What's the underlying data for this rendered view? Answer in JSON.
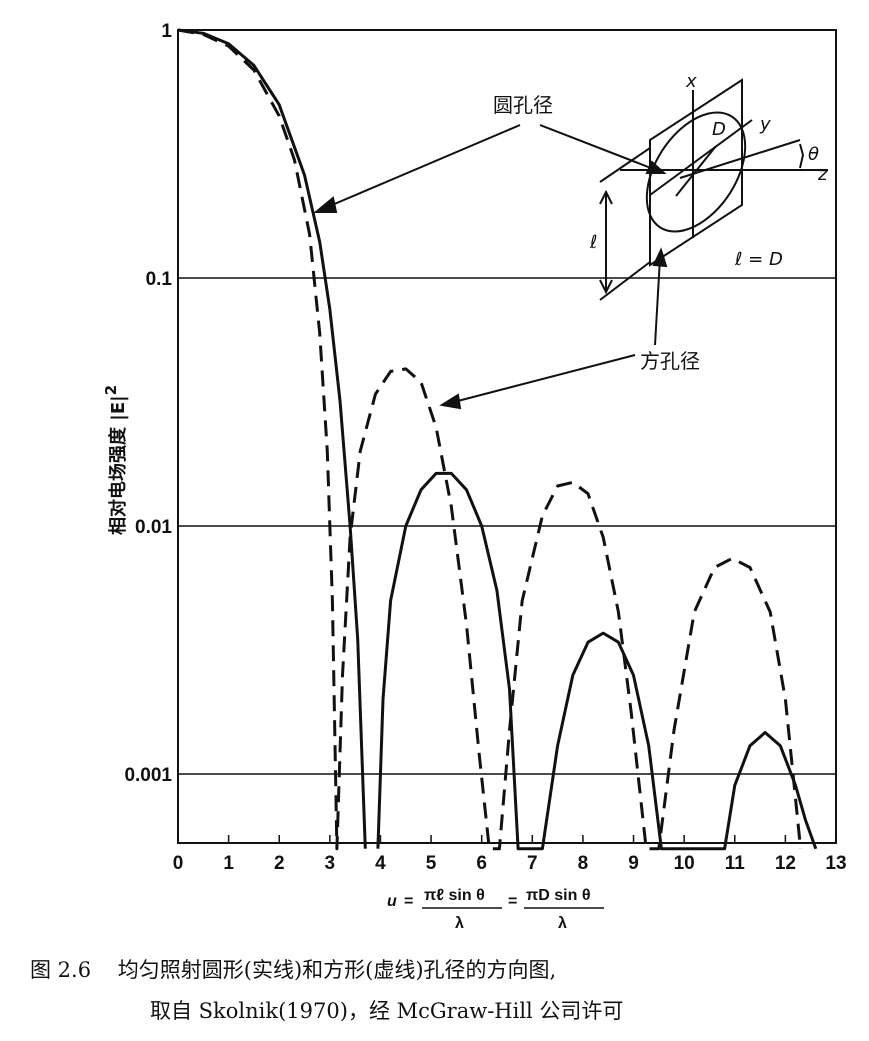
{
  "chart_data": {
    "type": "line",
    "y_scale": "log",
    "xlim": [
      0,
      13
    ],
    "ylim": [
      0.0005,
      1
    ],
    "x_ticks": [
      "0",
      "1",
      "2",
      "3",
      "4",
      "5",
      "6",
      "7",
      "8",
      "9",
      "10",
      "11",
      "12",
      "13"
    ],
    "y_ticks": [
      {
        "value": 1,
        "label": "1"
      },
      {
        "value": 0.1,
        "label": "0.1"
      },
      {
        "value": 0.01,
        "label": "0.01"
      },
      {
        "value": 0.001,
        "label": "0.001"
      }
    ],
    "ylabel": "相对电场强度 |E|",
    "ylabel_exp": "2",
    "xlabel": {
      "u": "u",
      "eq": "=",
      "num1": "πℓ sin θ",
      "num2": "πD sin θ",
      "den": "λ"
    },
    "series": [
      {
        "name": "圆孔径",
        "style": "solid",
        "x": [
          0,
          0.5,
          1.0,
          1.5,
          2.0,
          2.5,
          2.8,
          3.0,
          3.2,
          3.4,
          3.55,
          3.7,
          3.85,
          3.95,
          4.05,
          4.2,
          4.5,
          4.8,
          5.1,
          5.4,
          5.7,
          6.0,
          6.3,
          6.55,
          6.72,
          7.2,
          7.5,
          7.8,
          8.1,
          8.4,
          8.7,
          9.0,
          9.3,
          9.55,
          10.8,
          11.0,
          11.3,
          11.6,
          11.9,
          12.2,
          12.4,
          12.6
        ],
        "y": [
          1,
          0.97,
          0.88,
          0.72,
          0.5,
          0.26,
          0.14,
          0.075,
          0.032,
          0.01,
          0.0035,
          0.0005,
          null,
          0.0005,
          0.002,
          0.005,
          0.01,
          0.014,
          0.0163,
          0.0163,
          0.014,
          0.01,
          0.0055,
          0.0022,
          0.0005,
          0.0005,
          0.0013,
          0.0025,
          0.0034,
          0.0037,
          0.0034,
          0.0025,
          0.0013,
          0.0005,
          0.0005,
          0.0009,
          0.0013,
          0.00147,
          0.0013,
          0.0009,
          0.00065,
          0.0005
        ]
      },
      {
        "name": "方孔径",
        "style": "dashed",
        "x": [
          0,
          0.5,
          1.0,
          1.5,
          2.0,
          2.3,
          2.6,
          2.8,
          2.95,
          3.05,
          3.14,
          3.25,
          3.4,
          3.6,
          3.9,
          4.2,
          4.5,
          4.8,
          5.1,
          5.4,
          5.7,
          5.95,
          6.15,
          6.35,
          6.55,
          6.8,
          7.2,
          7.5,
          7.8,
          8.1,
          8.4,
          8.7,
          8.95,
          9.25,
          9.5,
          9.8,
          10.2,
          10.6,
          10.95,
          11.3,
          11.7,
          12.0,
          12.3
        ],
        "y": [
          1,
          0.96,
          0.86,
          0.69,
          0.45,
          0.3,
          0.15,
          0.06,
          0.02,
          0.005,
          0.0005,
          0.0025,
          0.009,
          0.02,
          0.034,
          0.042,
          0.043,
          0.038,
          0.025,
          0.012,
          0.004,
          0.0012,
          0.0005,
          0.0005,
          0.0015,
          0.005,
          0.011,
          0.0145,
          0.015,
          0.0135,
          0.009,
          0.0045,
          0.0018,
          0.0005,
          0.0005,
          0.0015,
          0.0045,
          0.0068,
          0.0074,
          0.0068,
          0.0045,
          0.002,
          0.0005
        ]
      }
    ],
    "annotations": {
      "circle": "圆孔径",
      "square": "方孔径",
      "l_eq_d": "ℓ = D"
    },
    "inset_labels": {
      "x": "x",
      "y": "y",
      "z": "z",
      "theta": "θ",
      "D": "D",
      "l": "ℓ"
    }
  },
  "caption": {
    "line1": "图 2.6    均匀照射圆形(实线)和方形(虚线)孔径的方向图,",
    "line2": "取自 Skolnik(1970)，经 McGraw-Hill 公司许可"
  }
}
